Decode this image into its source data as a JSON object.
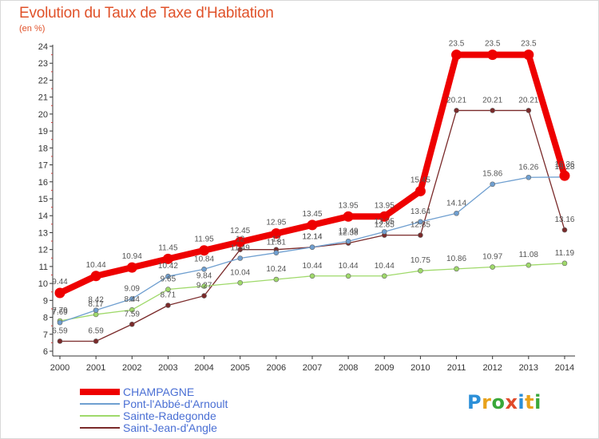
{
  "chart_data": {
    "type": "line",
    "title": "Evolution du Taux de Taxe d'Habitation",
    "subtitle": "(en %)",
    "x": [
      "2000",
      "2001",
      "2002",
      "2003",
      "2004",
      "2005",
      "2006",
      "2007",
      "2008",
      "2009",
      "2010",
      "2011",
      "2012",
      "2013",
      "2014"
    ],
    "ylim": [
      6,
      24
    ],
    "yticks": [
      6,
      7,
      8,
      9,
      10,
      11,
      12,
      13,
      14,
      15,
      16,
      17,
      18,
      19,
      20,
      21,
      22,
      23,
      24
    ],
    "grid": false,
    "legend_position": "bottom-left",
    "series": [
      {
        "name": "CHAMPAGNE",
        "color": "#ee0000",
        "values": [
          9.44,
          10.44,
          10.94,
          11.45,
          11.95,
          12.45,
          12.95,
          13.45,
          13.95,
          13.95,
          15.45,
          23.5,
          23.5,
          23.5,
          16.36
        ],
        "labels": [
          "9.44",
          "10.44",
          "10.94",
          "11.45",
          "11.95",
          "12.45",
          "12.95",
          "13.45",
          "13.95",
          "13.95",
          "15.45",
          "23.5",
          "23.5",
          "23.5",
          "16.36"
        ]
      },
      {
        "name": "Pont-l'Abbé-d'Arnoult",
        "color": "#6f9fd0",
        "values": [
          7.69,
          8.42,
          9.09,
          10.42,
          10.84,
          11.49,
          11.81,
          12.14,
          12.49,
          13.05,
          13.64,
          14.14,
          15.86,
          16.26,
          16.28
        ],
        "labels": [
          "7.69",
          "8.42",
          "9.09",
          "10.42",
          "10.84",
          "11.49",
          "11.81",
          "12.14",
          "12.49",
          "13.05",
          "13.64",
          "14.14",
          "15.86",
          "16.26",
          "16.28"
        ]
      },
      {
        "name": "Sainte-Radegonde",
        "color": "#9fd96a",
        "values": [
          7.79,
          8.17,
          8.44,
          9.65,
          9.84,
          10.04,
          10.24,
          10.44,
          10.44,
          10.44,
          10.75,
          10.86,
          10.97,
          11.08,
          11.19
        ],
        "labels": [
          "7.79",
          "8.17",
          "8.44",
          "9.65",
          "9.84",
          "10.04",
          "10.24",
          "10.44",
          "10.44",
          "10.44",
          "10.75",
          "10.86",
          "10.97",
          "11.08",
          "11.19"
        ]
      },
      {
        "name": "Saint-Jean-d'Angle",
        "color": "#7a2a2a",
        "values": [
          6.59,
          6.59,
          7.59,
          8.71,
          9.27,
          12.0,
          12.0,
          12.14,
          12.38,
          12.85,
          12.85,
          20.21,
          20.21,
          20.21,
          13.16
        ],
        "labels": [
          "6.59",
          "6.59",
          "7.59",
          "8.71",
          "9.27",
          "12",
          "12",
          "12.14",
          "12.38",
          "12.85",
          "12.85",
          "20.21",
          "20.21",
          "20.21",
          "13.16"
        ]
      }
    ]
  },
  "logo": {
    "text": "Proxiti",
    "colors": [
      "#2b8fd8",
      "#e8a21c",
      "#3aa83a",
      "#e04a2a",
      "#2b8fd8",
      "#e8a21c",
      "#3aa83a"
    ]
  }
}
